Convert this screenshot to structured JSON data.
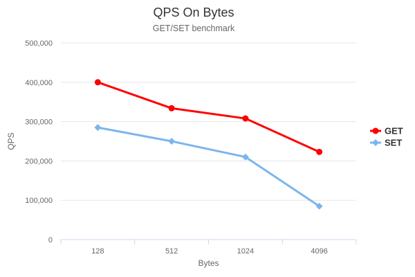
{
  "chart": {
    "title": "QPS On Bytes",
    "subtitle": "GET/SET benchmark"
  },
  "chart_data": {
    "type": "line",
    "title": "QPS On Bytes",
    "subtitle": "GET/SET benchmark",
    "xlabel": "Bytes",
    "ylabel": "QPS",
    "categories": [
      "128",
      "512",
      "1024",
      "4096"
    ],
    "series": [
      {
        "name": "GET",
        "color": "#ff0000",
        "marker": "circle",
        "values": [
          400000,
          334000,
          308000,
          223000
        ]
      },
      {
        "name": "SET",
        "color": "#7cb5ec",
        "marker": "diamond",
        "values": [
          285000,
          250000,
          210000,
          85000
        ]
      }
    ],
    "ylim": [
      0,
      500000
    ],
    "ytick_step": 100000,
    "ytick_labels": [
      "0",
      "100,000",
      "200,000",
      "300,000",
      "400,000",
      "500,000"
    ],
    "grid": true,
    "legend_position": "right"
  },
  "colors": {
    "title_text": "#333333",
    "subtitle_text": "#666666",
    "axis_label": "#666666",
    "axis_line": "#ccd6eb",
    "gridline": "#e6e6e6",
    "legend_text": "#333333",
    "background": "#ffffff"
  }
}
